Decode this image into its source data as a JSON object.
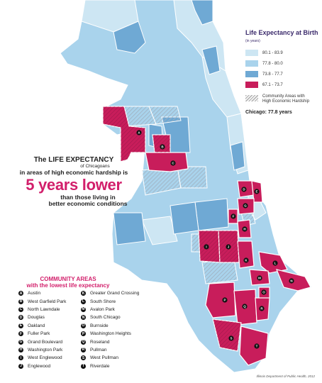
{
  "legend": {
    "title": "Life Expectancy at Birth",
    "unit": "(in years)",
    "ranges": [
      {
        "label": "80.1 - 83.9",
        "color": "#cde6f3"
      },
      {
        "label": "77.8 - 80.0",
        "color": "#a9d3ec"
      },
      {
        "label": "73.8 - 77.7",
        "color": "#6fa9d4"
      },
      {
        "label": "67.1 - 73.7",
        "color": "#c81d5b"
      }
    ],
    "hatch_label": "Community Areas with High Economic Hardship",
    "chicago_avg": "Chicago: 77.8 years"
  },
  "callout": {
    "line1": "The LIFE EXPECTANCY",
    "line2": "of Chicagoans",
    "line3": "in areas of high economic hardship is",
    "line4": "5 years lower",
    "line5": "than those living in",
    "line6": "better economic conditions"
  },
  "community_areas": {
    "title_line1": "COMMUNITY AREAS",
    "title_line2": "with the lowest life expectancy",
    "left": [
      {
        "key": "A",
        "name": "Austin"
      },
      {
        "key": "B",
        "name": "West Garfield Park"
      },
      {
        "key": "C",
        "name": "North Lawndale"
      },
      {
        "key": "D",
        "name": "Douglas"
      },
      {
        "key": "E",
        "name": "Oakland"
      },
      {
        "key": "F",
        "name": "Fuller Park"
      },
      {
        "key": "G",
        "name": "Grand Boulevard"
      },
      {
        "key": "H",
        "name": "Washington Park"
      },
      {
        "key": "I",
        "name": "West Englewood"
      },
      {
        "key": "J",
        "name": "Englewood"
      }
    ],
    "right": [
      {
        "key": "K",
        "name": "Greater Grand Crossing"
      },
      {
        "key": "L",
        "name": "South Shore"
      },
      {
        "key": "M",
        "name": "Avalon Park"
      },
      {
        "key": "N",
        "name": "South Chicago"
      },
      {
        "key": "O",
        "name": "Burnside"
      },
      {
        "key": "P",
        "name": "Washington Heights"
      },
      {
        "key": "Q",
        "name": "Roseland"
      },
      {
        "key": "R",
        "name": "Pullman"
      },
      {
        "key": "S",
        "name": "West Pullman"
      },
      {
        "key": "T",
        "name": "Riverdale"
      }
    ]
  },
  "map_markers": [
    "A",
    "B",
    "C",
    "D",
    "E",
    "F",
    "G",
    "H",
    "I",
    "J",
    "K",
    "L",
    "M",
    "N",
    "O",
    "P",
    "Q",
    "R",
    "S",
    "T"
  ],
  "source": "Illinois Department of Public Health, 2012"
}
